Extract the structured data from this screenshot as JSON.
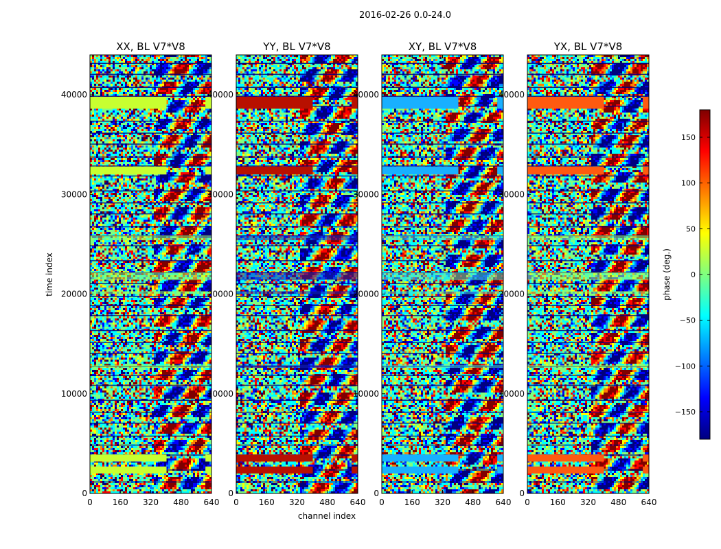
{
  "suptitle": "2016-02-26 0.0-24.0",
  "chart_data": {
    "type": "heatmap",
    "xlabel": "channel index",
    "ylabel": "time index",
    "xlim": [
      0,
      640
    ],
    "ylim": [
      0,
      44000
    ],
    "x_ticks": [
      0,
      160,
      320,
      480,
      640
    ],
    "y_ticks": [
      0,
      10000,
      20000,
      30000,
      40000
    ],
    "panels": [
      {
        "title": "XX, BL V7*V8",
        "band_color": "#c8ff30",
        "band2_color": "#9cff5a"
      },
      {
        "title": "YY, BL V7*V8",
        "band_color": "#b81000",
        "band2_color": "#1020c0"
      },
      {
        "title": "XY, BL V7*V8",
        "band_color": "#18b0ff",
        "band2_color": "#40e0d0"
      },
      {
        "title": "YX, BL V7*V8",
        "band_color": "#ff5a10",
        "band2_color": "#a0ff60"
      }
    ],
    "colorbar": {
      "label": "phase (deg.)",
      "range": [
        -180,
        180
      ],
      "ticks": [
        150,
        100,
        50,
        0,
        -50,
        -100,
        -150
      ],
      "tick_labels": [
        "150",
        "100",
        "50",
        "0",
        "−50",
        "−100",
        "−150"
      ],
      "colormap": "jet",
      "colormap_stops": [
        "#00007f",
        "#0000ff",
        "#007fff",
        "#00ffff",
        "#7fff7f",
        "#ffff00",
        "#ff7f00",
        "#ff0000",
        "#7f0000"
      ]
    }
  }
}
